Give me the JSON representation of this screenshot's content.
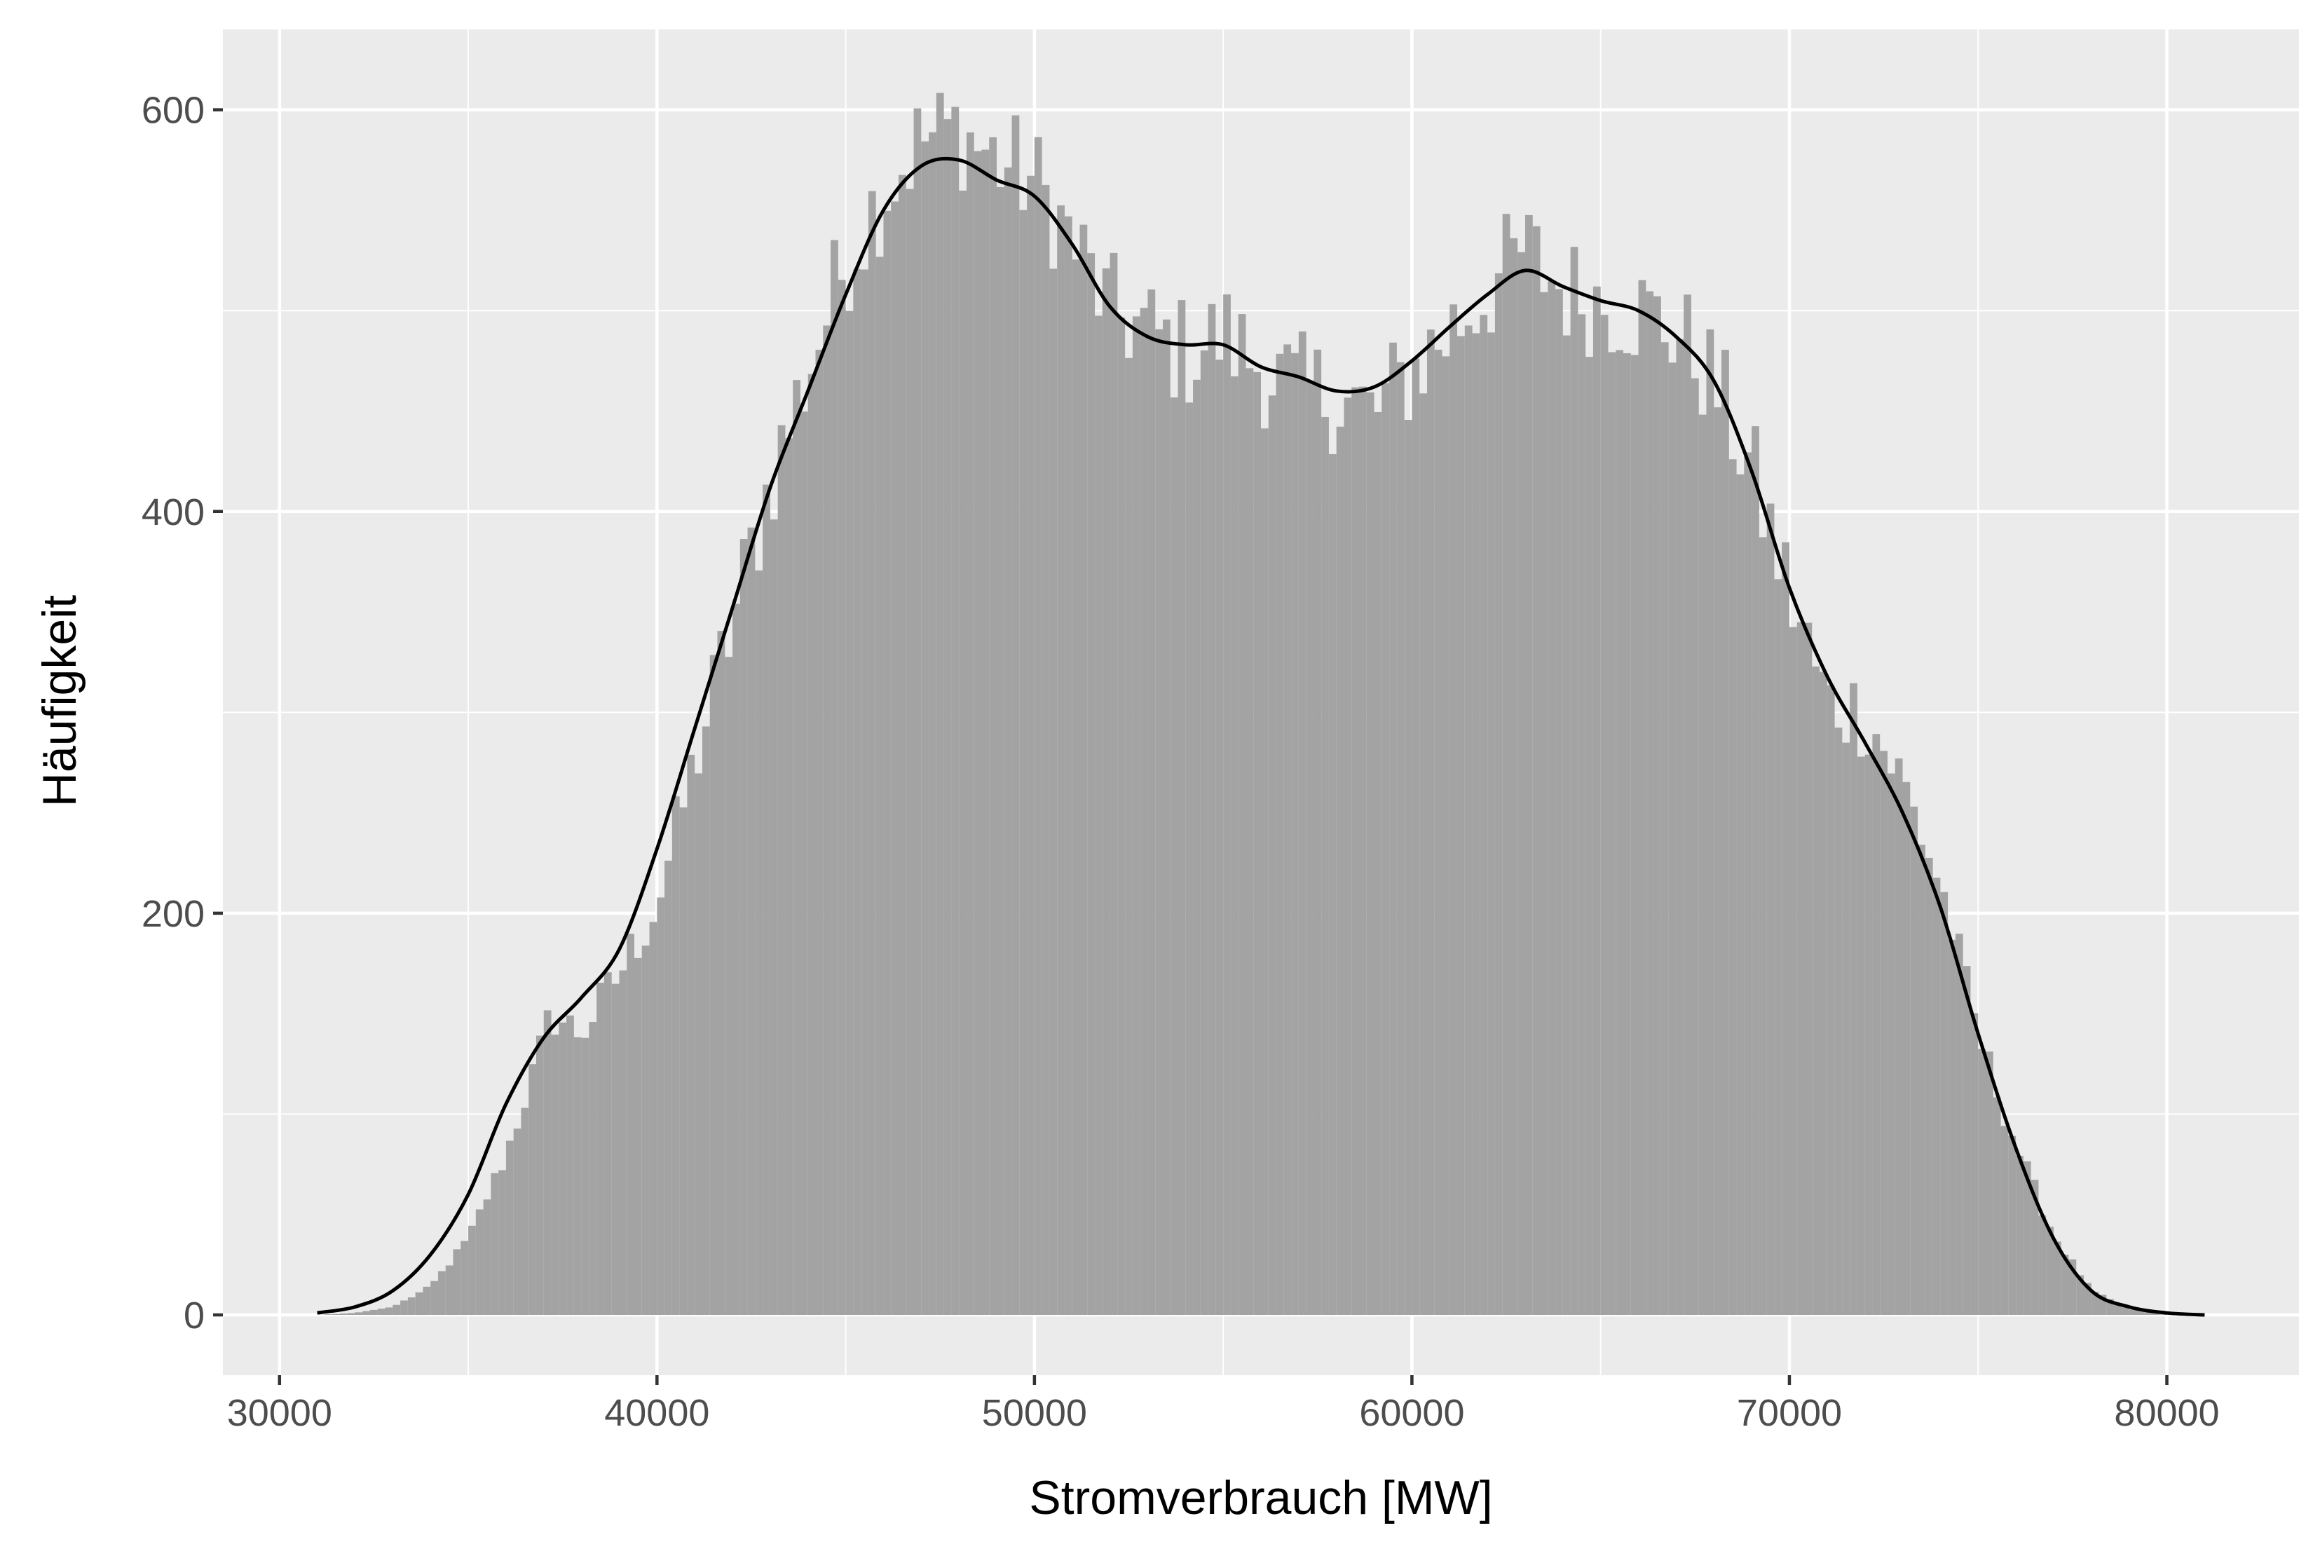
{
  "chart_data": {
    "type": "bar",
    "title": "",
    "xlabel": "Stromverbrauch [MW]",
    "ylabel": "Häufigkeit",
    "xlim": [
      28500,
      83500
    ],
    "ylim": [
      -30,
      640
    ],
    "x_ticks": [
      30000,
      40000,
      50000,
      60000,
      70000,
      80000
    ],
    "y_ticks": [
      0,
      200,
      400,
      600
    ],
    "grid": true,
    "legend": "none",
    "colors": {
      "panel_background": "#ebebeb",
      "grid_line": "#ffffff",
      "bar_fill": "#a3a3a3",
      "density_line": "#000000"
    },
    "bar_profile": {
      "x": [
        31000,
        32000,
        33000,
        34000,
        35000,
        36000,
        36800,
        37200,
        38000,
        39000,
        40000,
        41000,
        42000,
        43000,
        44000,
        45000,
        46000,
        47000,
        48000,
        49000,
        50000,
        51000,
        52000,
        53000,
        54000,
        55000,
        56000,
        57000,
        58000,
        59000,
        60000,
        61000,
        62000,
        63000,
        64000,
        65000,
        66000,
        67000,
        68000,
        69000,
        70000,
        71000,
        72000,
        73000,
        74000,
        75000,
        76000,
        77000,
        78000,
        79000,
        80000,
        81000
      ],
      "y": [
        0,
        1,
        4,
        14,
        38,
        80,
        125,
        150,
        140,
        170,
        205,
        275,
        345,
        415,
        470,
        525,
        560,
        585,
        590,
        575,
        565,
        535,
        500,
        490,
        478,
        488,
        472,
        460,
        458,
        448,
        470,
        490,
        510,
        530,
        510,
        505,
        500,
        490,
        465,
        420,
        360,
        305,
        300,
        265,
        215,
        140,
        85,
        40,
        12,
        3,
        0,
        0
      ]
    },
    "density_curve": {
      "x": [
        31000,
        32000,
        33000,
        34000,
        35000,
        36000,
        37000,
        38000,
        39000,
        40000,
        41000,
        42000,
        43000,
        44000,
        45000,
        46000,
        47000,
        48000,
        49000,
        50000,
        51000,
        52000,
        53000,
        54000,
        55000,
        56000,
        57000,
        58000,
        59000,
        60000,
        61000,
        62000,
        63000,
        64000,
        65000,
        66000,
        67000,
        68000,
        69000,
        70000,
        71000,
        72000,
        73000,
        74000,
        75000,
        76000,
        77000,
        78000,
        79000,
        80000,
        81000
      ],
      "y": [
        1,
        4,
        12,
        30,
        60,
        105,
        138,
        158,
        182,
        232,
        292,
        352,
        412,
        460,
        508,
        550,
        572,
        575,
        565,
        557,
        533,
        502,
        487,
        483,
        483,
        472,
        467,
        460,
        462,
        475,
        492,
        508,
        520,
        512,
        505,
        500,
        487,
        465,
        420,
        362,
        318,
        285,
        250,
        203,
        140,
        83,
        38,
        12,
        4,
        1,
        0
      ]
    }
  }
}
